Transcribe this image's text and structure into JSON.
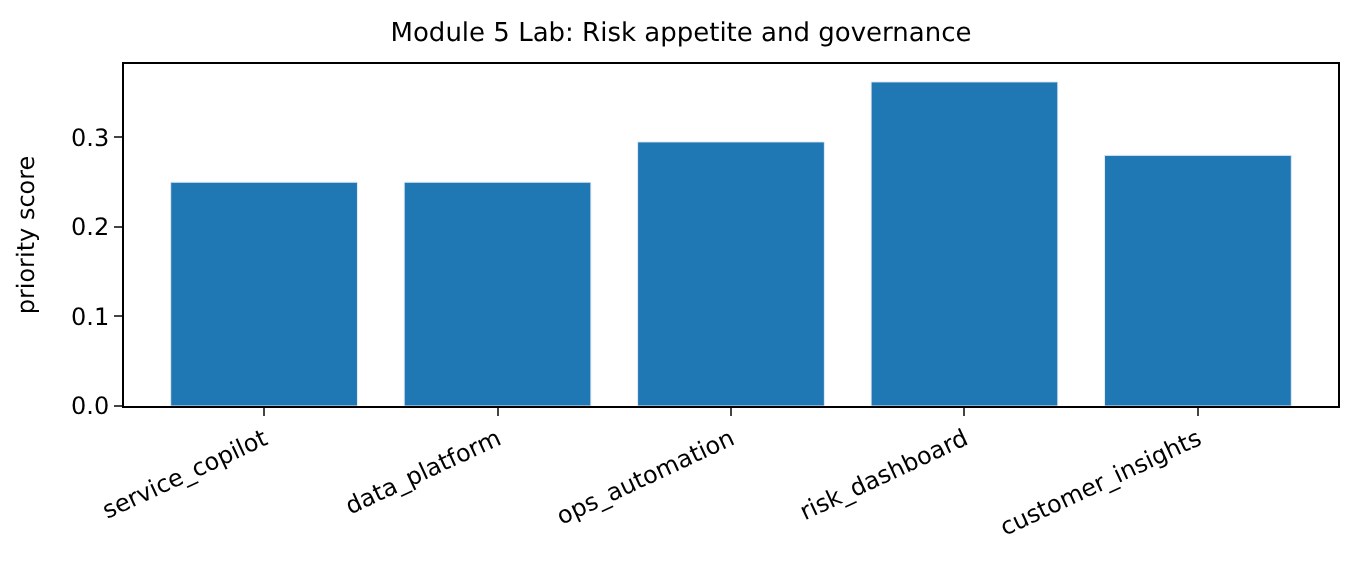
{
  "chart_data": {
    "type": "bar",
    "title": "Module 5 Lab: Risk appetite and governance",
    "ylabel": "priority score",
    "categories": [
      "service_copilot",
      "data_platform",
      "ops_automation",
      "risk_dashboard",
      "customer_insights"
    ],
    "values": [
      0.25,
      0.25,
      0.295,
      0.362,
      0.28
    ],
    "color": "#1f77b4",
    "ylim": [
      0,
      0.382
    ],
    "yticks": [
      {
        "value": 0,
        "label": "0.0"
      },
      {
        "value": 0.1,
        "label": "0.1"
      },
      {
        "value": 0.2,
        "label": "0.2"
      },
      {
        "value": 0.3,
        "label": "0.3"
      }
    ],
    "legend": false
  }
}
